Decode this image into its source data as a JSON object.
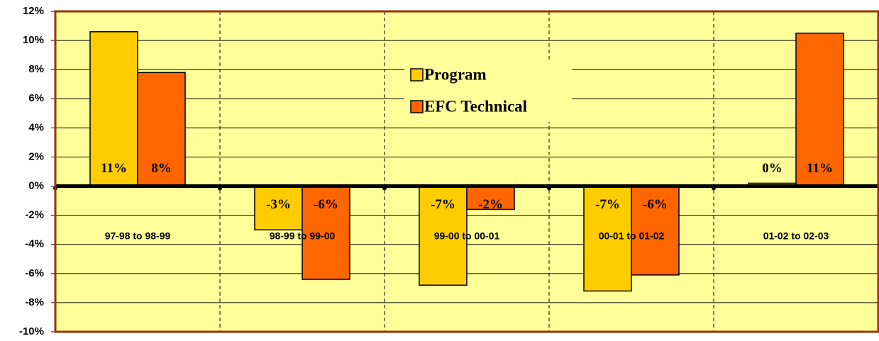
{
  "chart_data": {
    "type": "bar",
    "categories": [
      "97-98 to 98-99",
      "98-99 to 99-00",
      "99-00 to 00-01",
      "00-01 to 01-02",
      "01-02 to 02-03"
    ],
    "series": [
      {
        "name": "Program",
        "color": "#ffcc00",
        "values": [
          10.6,
          -3.0,
          -6.8,
          -7.2,
          0.2
        ],
        "value_labels": [
          "11%",
          "-3%",
          "-7%",
          "-7%",
          "0%"
        ]
      },
      {
        "name": "EFC Technical",
        "color": "#ff6600",
        "values": [
          7.8,
          -6.4,
          -1.6,
          -6.1,
          10.5
        ],
        "value_labels": [
          "8%",
          "-6%",
          "-2%",
          "-6%",
          "11%"
        ]
      }
    ],
    "ylim": [
      -10,
      12
    ],
    "yticks": [
      {
        "value": -10,
        "label": "-10%"
      },
      {
        "value": -8,
        "label": "-8%"
      },
      {
        "value": -6,
        "label": "-6%"
      },
      {
        "value": -4,
        "label": "-4%"
      },
      {
        "value": -2,
        "label": "-2%"
      },
      {
        "value": 0,
        "label": "0%"
      },
      {
        "value": 2,
        "label": "2%"
      },
      {
        "value": 4,
        "label": "4%"
      },
      {
        "value": 6,
        "label": "6%"
      },
      {
        "value": 8,
        "label": "8%"
      },
      {
        "value": 10,
        "label": "10%"
      },
      {
        "value": 12,
        "label": "12%"
      }
    ],
    "grid": true,
    "legend": "upper center"
  }
}
